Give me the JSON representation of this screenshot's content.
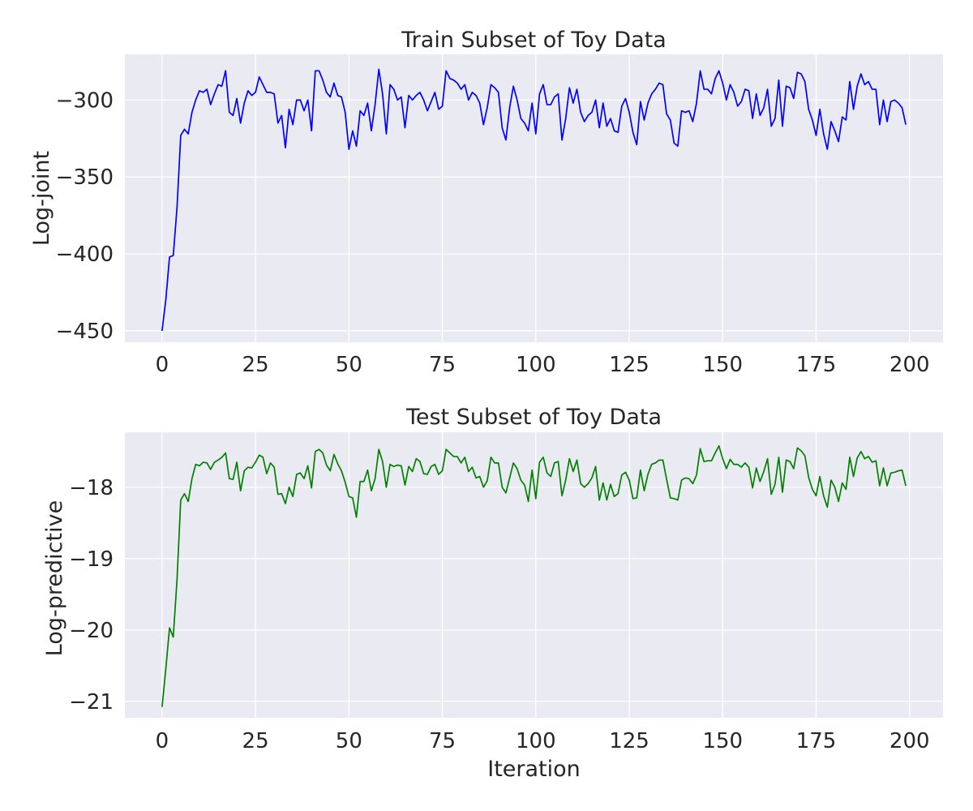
{
  "chart_data": [
    {
      "type": "line",
      "title": "Train Subset of Toy Data",
      "xlabel": "",
      "ylabel": "Log-joint",
      "xlim": [
        -9.95,
        208.95
      ],
      "ylim": [
        -457.4,
        -270.3
      ],
      "xticks": [
        0,
        25,
        50,
        75,
        100,
        125,
        150,
        175,
        200
      ],
      "xtick_labels": [
        "0",
        "25",
        "50",
        "75",
        "100",
        "125",
        "150",
        "175",
        "200"
      ],
      "yticks": [
        -300,
        -350,
        -400,
        -450
      ],
      "ytick_labels": [
        "−300",
        "−350",
        "−400",
        "−450"
      ],
      "grid": true,
      "series": [
        {
          "color": "#0000ff",
          "x_start": 0,
          "x_step": 1,
          "values": [
            -450.0,
            -430.0,
            -402.0,
            -401.0,
            -370.0,
            -323.0,
            -319.0,
            -322.0,
            -308.0,
            -300.0,
            -294.0,
            -295.0,
            -293.0,
            -303.0,
            -296.0,
            -290.0,
            -291.0,
            -281.0,
            -308.0,
            -310.0,
            -299.0,
            -315.0,
            -302.0,
            -294.0,
            -297.0,
            -295.0,
            -285.0,
            -290.0,
            -295.0,
            -295.0,
            -296.0,
            -315.0,
            -310.0,
            -331.0,
            -306.0,
            -316.0,
            -300.0,
            -300.0,
            -307.0,
            -300.0,
            -320.0,
            -281.0,
            -281.0,
            -287.0,
            -295.0,
            -298.0,
            -289.0,
            -297.0,
            -298.0,
            -308.0,
            -332.0,
            -320.0,
            -330.0,
            -307.0,
            -310.0,
            -302.0,
            -320.0,
            -303.0,
            -280.0,
            -296.0,
            -322.0,
            -290.0,
            -293.0,
            -300.0,
            -298.0,
            -318.0,
            -297.0,
            -300.0,
            -297.0,
            -295.0,
            -300.0,
            -307.0,
            -301.0,
            -295.0,
            -306.0,
            -304.0,
            -281.0,
            -286.0,
            -287.0,
            -289.0,
            -293.0,
            -290.0,
            -300.0,
            -295.0,
            -297.0,
            -302.0,
            -316.0,
            -305.0,
            -290.0,
            -292.0,
            -295.0,
            -318.0,
            -326.0,
            -305.0,
            -291.0,
            -300.0,
            -312.0,
            -315.0,
            -320.0,
            -302.0,
            -322.0,
            -296.0,
            -290.0,
            -303.0,
            -303.0,
            -298.0,
            -296.0,
            -326.0,
            -312.0,
            -292.0,
            -302.0,
            -293.0,
            -308.0,
            -314.0,
            -310.0,
            -308.0,
            -300.0,
            -318.0,
            -302.0,
            -317.0,
            -312.0,
            -320.0,
            -321.0,
            -304.0,
            -299.0,
            -308.0,
            -321.0,
            -329.0,
            -301.0,
            -313.0,
            -302.0,
            -296.0,
            -293.0,
            -289.0,
            -290.0,
            -309.0,
            -313.0,
            -328.0,
            -330.0,
            -307.0,
            -308.0,
            -307.0,
            -314.0,
            -302.0,
            -281.0,
            -293.0,
            -293.0,
            -296.0,
            -286.0,
            -281.0,
            -289.0,
            -300.0,
            -290.0,
            -295.0,
            -304.0,
            -301.0,
            -293.0,
            -294.0,
            -312.0,
            -296.0,
            -310.0,
            -305.0,
            -293.0,
            -317.0,
            -312.0,
            -287.0,
            -317.0,
            -291.0,
            -292.0,
            -299.0,
            -282.0,
            -283.0,
            -288.0,
            -306.0,
            -313.0,
            -323.0,
            -306.0,
            -322.0,
            -332.0,
            -314.0,
            -320.0,
            -327.0,
            -311.0,
            -313.0,
            -288.0,
            -306.0,
            -291.0,
            -283.0,
            -290.0,
            -288.0,
            -293.0,
            -293.0,
            -316.0,
            -300.0,
            -314.0,
            -301.0,
            -300.0,
            -302.0,
            -305.0,
            -316.0
          ]
        }
      ]
    },
    {
      "type": "line",
      "title": "Test Subset of Toy Data",
      "xlabel": "Iteration",
      "ylabel": "Log-predictive",
      "xlim": [
        -9.95,
        208.95
      ],
      "ylim": [
        -21.23,
        -17.23
      ],
      "xticks": [
        0,
        25,
        50,
        75,
        100,
        125,
        150,
        175,
        200
      ],
      "xtick_labels": [
        "0",
        "25",
        "50",
        "75",
        "100",
        "125",
        "150",
        "175",
        "200"
      ],
      "yticks": [
        -18,
        -19,
        -20,
        -21
      ],
      "ytick_labels": [
        "−18",
        "−19",
        "−20",
        "−21"
      ],
      "grid": true,
      "series": [
        {
          "color": "#008000",
          "x_start": 0,
          "x_step": 1,
          "values": [
            -21.08,
            -20.55,
            -19.97,
            -20.1,
            -19.3,
            -18.18,
            -18.09,
            -18.2,
            -17.88,
            -17.68,
            -17.7,
            -17.65,
            -17.66,
            -17.75,
            -17.65,
            -17.62,
            -17.58,
            -17.52,
            -17.88,
            -17.89,
            -17.65,
            -18.05,
            -17.77,
            -17.72,
            -17.73,
            -17.65,
            -17.55,
            -17.58,
            -17.81,
            -17.66,
            -17.72,
            -18.1,
            -18.09,
            -18.23,
            -18.0,
            -18.13,
            -17.82,
            -17.8,
            -17.88,
            -17.7,
            -18.01,
            -17.5,
            -17.47,
            -17.52,
            -17.69,
            -17.77,
            -17.54,
            -17.67,
            -17.77,
            -17.93,
            -18.13,
            -18.15,
            -18.42,
            -17.92,
            -17.92,
            -17.76,
            -18.05,
            -17.88,
            -17.47,
            -17.64,
            -18.0,
            -17.68,
            -17.71,
            -17.69,
            -17.7,
            -17.97,
            -17.71,
            -17.78,
            -17.6,
            -17.64,
            -17.81,
            -17.82,
            -17.71,
            -17.68,
            -17.82,
            -17.77,
            -17.47,
            -17.52,
            -17.57,
            -17.57,
            -17.66,
            -17.58,
            -17.78,
            -17.72,
            -17.87,
            -17.85,
            -18.0,
            -17.91,
            -17.58,
            -17.66,
            -17.66,
            -18.0,
            -18.08,
            -17.87,
            -17.66,
            -17.74,
            -17.9,
            -17.97,
            -18.2,
            -17.76,
            -18.16,
            -17.65,
            -17.58,
            -17.8,
            -17.85,
            -17.66,
            -17.64,
            -18.12,
            -17.9,
            -17.6,
            -17.78,
            -17.62,
            -17.95,
            -18.0,
            -17.95,
            -17.87,
            -17.71,
            -18.18,
            -17.94,
            -18.18,
            -17.96,
            -18.13,
            -18.09,
            -17.83,
            -17.79,
            -17.9,
            -18.16,
            -18.15,
            -17.76,
            -18.05,
            -17.82,
            -17.68,
            -17.66,
            -17.62,
            -17.62,
            -17.89,
            -18.15,
            -18.16,
            -18.18,
            -17.9,
            -17.87,
            -17.88,
            -17.95,
            -17.83,
            -17.46,
            -17.64,
            -17.63,
            -17.63,
            -17.52,
            -17.42,
            -17.6,
            -17.74,
            -17.61,
            -17.68,
            -17.68,
            -17.72,
            -17.66,
            -17.72,
            -18.01,
            -17.73,
            -17.92,
            -17.78,
            -17.6,
            -18.1,
            -17.96,
            -17.58,
            -18.07,
            -17.62,
            -17.64,
            -17.74,
            -17.45,
            -17.49,
            -17.56,
            -17.86,
            -18.03,
            -18.12,
            -17.85,
            -18.12,
            -18.28,
            -17.9,
            -18.0,
            -18.2,
            -17.94,
            -18.03,
            -17.58,
            -17.85,
            -17.59,
            -17.5,
            -17.6,
            -17.57,
            -17.65,
            -17.63,
            -17.98,
            -17.73,
            -17.98,
            -17.8,
            -17.79,
            -17.77,
            -17.76,
            -17.98
          ]
        }
      ]
    }
  ]
}
